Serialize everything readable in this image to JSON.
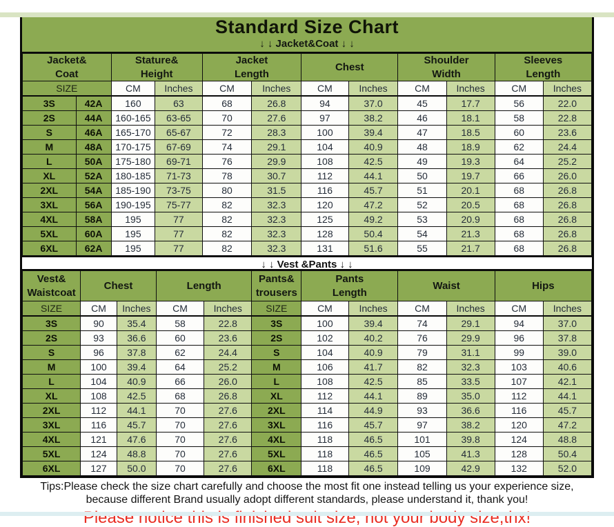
{
  "title": "Standard Size Chart",
  "sections": {
    "jacket_divider": "↓ ↓  Jacket&Coat ↓ ↓",
    "vest_divider": "↓ ↓  Vest &Pants ↓ ↓"
  },
  "colors": {
    "header_green": "#8caa52",
    "light_green": "#c9d9a1",
    "white_cell": "#fdfdfb",
    "border_black": "#0a0a0a",
    "notice_red": "#e92d22"
  },
  "jacket_table": {
    "groups": [
      {
        "label": "Jacket&\nCoat",
        "span": 2
      },
      {
        "label": "Stature&\nHeight",
        "span": 2
      },
      {
        "label": "Jacket\nLength",
        "span": 2
      },
      {
        "label": "Chest",
        "span": 2
      },
      {
        "label": "Shoulder\nWidth",
        "span": 2
      },
      {
        "label": "Sleeves\nLength",
        "span": 2
      }
    ],
    "subheader": [
      {
        "label": "SIZE",
        "span": 2,
        "type": "size"
      },
      {
        "label": "CM",
        "type": "cm"
      },
      {
        "label": "Inches",
        "type": "in"
      },
      {
        "label": "CM",
        "type": "cm"
      },
      {
        "label": "Inches",
        "type": "in"
      },
      {
        "label": "CM",
        "type": "cm"
      },
      {
        "label": "Inches",
        "type": "in"
      },
      {
        "label": "CM",
        "type": "cm"
      },
      {
        "label": "Inches",
        "type": "in"
      },
      {
        "label": "CM",
        "type": "cm"
      },
      {
        "label": "Inches",
        "type": "in"
      }
    ],
    "col_types": [
      "size",
      "size",
      "cm",
      "in",
      "cm",
      "in",
      "cm",
      "in",
      "cm",
      "in",
      "cm",
      "in"
    ],
    "rows": [
      [
        "3S",
        "42A",
        "160",
        "63",
        "68",
        "26.8",
        "94",
        "37.0",
        "45",
        "17.7",
        "56",
        "22.0"
      ],
      [
        "2S",
        "44A",
        "160-165",
        "63-65",
        "70",
        "27.6",
        "97",
        "38.2",
        "46",
        "18.1",
        "58",
        "22.8"
      ],
      [
        "S",
        "46A",
        "165-170",
        "65-67",
        "72",
        "28.3",
        "100",
        "39.4",
        "47",
        "18.5",
        "60",
        "23.6"
      ],
      [
        "M",
        "48A",
        "170-175",
        "67-69",
        "74",
        "29.1",
        "104",
        "40.9",
        "48",
        "18.9",
        "62",
        "24.4"
      ],
      [
        "L",
        "50A",
        "175-180",
        "69-71",
        "76",
        "29.9",
        "108",
        "42.5",
        "49",
        "19.3",
        "64",
        "25.2"
      ],
      [
        "XL",
        "52A",
        "180-185",
        "71-73",
        "78",
        "30.7",
        "112",
        "44.1",
        "50",
        "19.7",
        "66",
        "26.0"
      ],
      [
        "2XL",
        "54A",
        "185-190",
        "73-75",
        "80",
        "31.5",
        "116",
        "45.7",
        "51",
        "20.1",
        "68",
        "26.8"
      ],
      [
        "3XL",
        "56A",
        "190-195",
        "75-77",
        "82",
        "32.3",
        "120",
        "47.2",
        "52",
        "20.5",
        "68",
        "26.8"
      ],
      [
        "4XL",
        "58A",
        "195",
        "77",
        "82",
        "32.3",
        "125",
        "49.2",
        "53",
        "20.9",
        "68",
        "26.8"
      ],
      [
        "5XL",
        "60A",
        "195",
        "77",
        "82",
        "32.3",
        "128",
        "50.4",
        "54",
        "21.3",
        "68",
        "26.8"
      ],
      [
        "6XL",
        "62A",
        "195",
        "77",
        "82",
        "32.3",
        "131",
        "51.6",
        "55",
        "21.7",
        "68",
        "26.8"
      ]
    ]
  },
  "vest_table": {
    "groups": [
      {
        "label": "Vest&\nWaistcoat",
        "span": 1
      },
      {
        "label": "Chest",
        "span": 2
      },
      {
        "label": "Length",
        "span": 2
      },
      {
        "label": "Pants&\ntrousers",
        "span": 1
      },
      {
        "label": "Pants\nLength",
        "span": 2
      },
      {
        "label": "Waist",
        "span": 2
      },
      {
        "label": "Hips",
        "span": 2
      }
    ],
    "subheader": [
      {
        "label": "SIZE",
        "type": "size"
      },
      {
        "label": "CM",
        "type": "cm"
      },
      {
        "label": "Inches",
        "type": "in"
      },
      {
        "label": "CM",
        "type": "cm"
      },
      {
        "label": "Inches",
        "type": "in"
      },
      {
        "label": "SIZE",
        "type": "size"
      },
      {
        "label": "CM",
        "type": "cm"
      },
      {
        "label": "Inches",
        "type": "in"
      },
      {
        "label": "CM",
        "type": "cm"
      },
      {
        "label": "Inches",
        "type": "in"
      },
      {
        "label": "CM",
        "type": "cm"
      },
      {
        "label": "Inches",
        "type": "in"
      }
    ],
    "col_types": [
      "size",
      "cm",
      "in",
      "cm",
      "in",
      "size",
      "cm",
      "in",
      "cm",
      "in",
      "cm",
      "in"
    ],
    "rows": [
      [
        "3S",
        "90",
        "35.4",
        "58",
        "22.8",
        "3S",
        "100",
        "39.4",
        "74",
        "29.1",
        "94",
        "37.0"
      ],
      [
        "2S",
        "93",
        "36.6",
        "60",
        "23.6",
        "2S",
        "102",
        "40.2",
        "76",
        "29.9",
        "96",
        "37.8"
      ],
      [
        "S",
        "96",
        "37.8",
        "62",
        "24.4",
        "S",
        "104",
        "40.9",
        "79",
        "31.1",
        "99",
        "39.0"
      ],
      [
        "M",
        "100",
        "39.4",
        "64",
        "25.2",
        "M",
        "106",
        "41.7",
        "82",
        "32.3",
        "103",
        "40.6"
      ],
      [
        "L",
        "104",
        "40.9",
        "66",
        "26.0",
        "L",
        "108",
        "42.5",
        "85",
        "33.5",
        "107",
        "42.1"
      ],
      [
        "XL",
        "108",
        "42.5",
        "68",
        "26.8",
        "XL",
        "112",
        "44.1",
        "89",
        "35.0",
        "112",
        "44.1"
      ],
      [
        "2XL",
        "112",
        "44.1",
        "70",
        "27.6",
        "2XL",
        "114",
        "44.9",
        "93",
        "36.6",
        "116",
        "45.7"
      ],
      [
        "3XL",
        "116",
        "45.7",
        "70",
        "27.6",
        "3XL",
        "116",
        "45.7",
        "97",
        "38.2",
        "120",
        "47.2"
      ],
      [
        "4XL",
        "121",
        "47.6",
        "70",
        "27.6",
        "4XL",
        "118",
        "46.5",
        "101",
        "39.8",
        "124",
        "48.8"
      ],
      [
        "5XL",
        "124",
        "48.8",
        "70",
        "27.6",
        "5XL",
        "118",
        "46.5",
        "105",
        "41.3",
        "128",
        "50.4"
      ],
      [
        "6XL",
        "127",
        "50.0",
        "70",
        "27.6",
        "6XL",
        "118",
        "46.5",
        "109",
        "42.9",
        "132",
        "52.0"
      ]
    ]
  },
  "footer": {
    "tips_line1": "Tips:Please check the size chart carefully and choose the most fit one instead telling us your experience size,",
    "tips_line2": "because different Brand usually adopt different standards, please understand it, thank you!",
    "notice": "Please notice this is finished suit size, not your body size,thx!"
  }
}
